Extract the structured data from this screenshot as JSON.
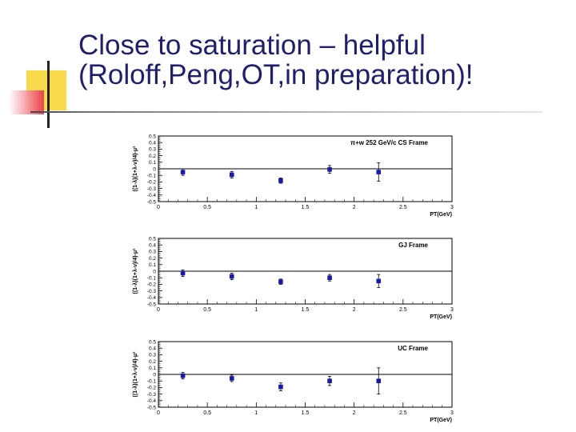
{
  "slide": {
    "title_line1": "Close to saturation – helpful",
    "title_line2": "(Roloff,Peng,OT,in preparation)!"
  },
  "colors": {
    "marker": "#1a1aa8",
    "error_bar": "#000000",
    "axis": "#000000",
    "title_text": "#1f1f6b"
  },
  "chart_data": [
    {
      "type": "scatter",
      "annotation": "π+w 252 GeV/c CS Frame",
      "xlabel": "PT(GeV)",
      "ylabel": "((1-λ)(1+λ-ν)/4)-μ²",
      "xlim": [
        0,
        3
      ],
      "ylim": [
        -0.5,
        0.5
      ],
      "xticks": [
        "0",
        "0.5",
        "1",
        "1.5",
        "2",
        "2.5",
        "3"
      ],
      "yticks": [
        "0.5",
        "0.4",
        "0.3",
        "0.2",
        "0.1",
        "0",
        "-0.1",
        "-0.2",
        "-0.3",
        "-0.4",
        "-0.5"
      ],
      "zero_line": true,
      "points": [
        {
          "x": 0.25,
          "y": -0.05,
          "err": 0.05
        },
        {
          "x": 0.75,
          "y": -0.09,
          "err": 0.05
        },
        {
          "x": 1.25,
          "y": -0.18,
          "err": 0.04
        },
        {
          "x": 1.75,
          "y": -0.01,
          "err": 0.06
        },
        {
          "x": 2.25,
          "y": -0.05,
          "err": 0.14
        }
      ]
    },
    {
      "type": "scatter",
      "annotation": "GJ Frame",
      "xlabel": "PT(GeV)",
      "ylabel": "((1-λ)(1+λ-ν)/4)-μ²",
      "xlim": [
        0,
        3
      ],
      "ylim": [
        -0.5,
        0.5
      ],
      "xticks": [
        "0",
        "0.5",
        "1",
        "1.5",
        "2",
        "2.5",
        "3"
      ],
      "yticks": [
        "0.5",
        "0.4",
        "0.3",
        "0.2",
        "0.1",
        "0",
        "-0.1",
        "-0.2",
        "-0.3",
        "-0.4",
        "-0.5"
      ],
      "zero_line": true,
      "points": [
        {
          "x": 0.25,
          "y": -0.03,
          "err": 0.05
        },
        {
          "x": 0.75,
          "y": -0.08,
          "err": 0.05
        },
        {
          "x": 1.25,
          "y": -0.16,
          "err": 0.04
        },
        {
          "x": 1.75,
          "y": -0.1,
          "err": 0.05
        },
        {
          "x": 2.25,
          "y": -0.15,
          "err": 0.1
        }
      ]
    },
    {
      "type": "scatter",
      "annotation": "UC Frame",
      "xlabel": "PT(GeV)",
      "ylabel": "((1-λ)(1+λ-ν)/4)-μ²",
      "xlim": [
        0,
        3
      ],
      "ylim": [
        -0.5,
        0.5
      ],
      "xticks": [
        "0",
        "0.5",
        "1",
        "1.5",
        "2",
        "2.5",
        "3"
      ],
      "yticks": [
        "0.5",
        "0.4",
        "0.3",
        "0.2",
        "0.1",
        "0",
        "-0.1",
        "-0.2",
        "-0.3",
        "-0.4",
        "-0.5"
      ],
      "zero_line": true,
      "points": [
        {
          "x": 0.25,
          "y": -0.02,
          "err": 0.05
        },
        {
          "x": 0.75,
          "y": -0.06,
          "err": 0.05
        },
        {
          "x": 1.25,
          "y": -0.19,
          "err": 0.06
        },
        {
          "x": 1.75,
          "y": -0.1,
          "err": 0.07
        },
        {
          "x": 2.25,
          "y": -0.1,
          "err": 0.2
        }
      ]
    }
  ]
}
